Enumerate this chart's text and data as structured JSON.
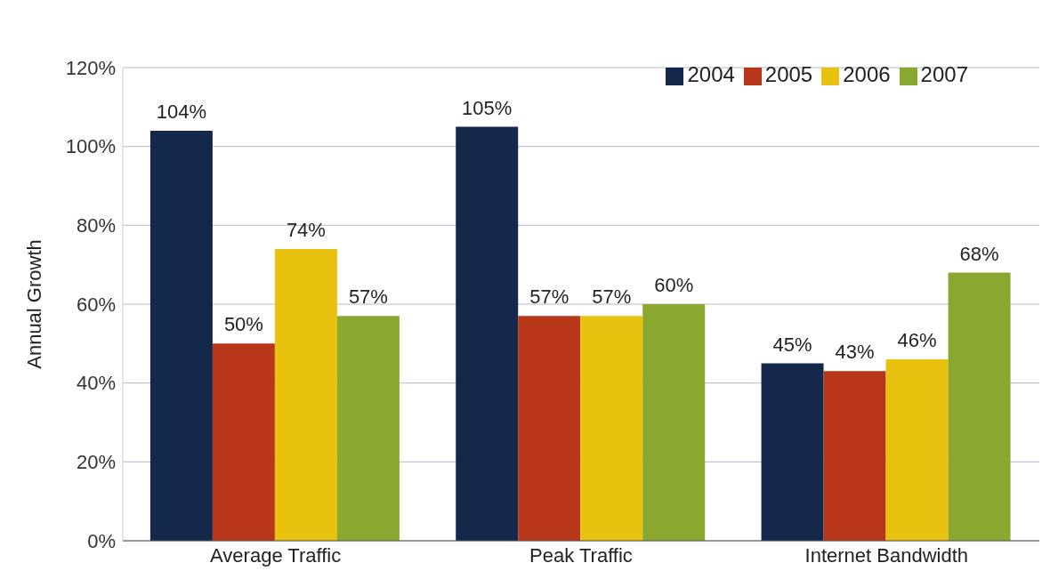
{
  "chart_data": {
    "type": "bar",
    "ylabel": "Annual Growth",
    "categories": [
      "Average Traffic",
      "Peak Traffic",
      "Internet Bandwidth"
    ],
    "series": [
      {
        "name": "2004",
        "color": "#14284b",
        "values": [
          104,
          105,
          45
        ],
        "value_labels": [
          "104%",
          "105%",
          "45%"
        ]
      },
      {
        "name": "2005",
        "color": "#b8361a",
        "values": [
          50,
          57,
          43
        ],
        "value_labels": [
          "50%",
          "57%",
          "43%"
        ]
      },
      {
        "name": "2006",
        "color": "#e8c20f",
        "values": [
          74,
          57,
          46
        ],
        "value_labels": [
          "74%",
          "57%",
          "46%"
        ]
      },
      {
        "name": "2007",
        "color": "#8aa830",
        "values": [
          57,
          60,
          68
        ],
        "value_labels": [
          "57%",
          "60%",
          "68%"
        ]
      }
    ],
    "ylim": [
      0,
      120
    ],
    "yticks": [
      {
        "value": 0,
        "label": "0%"
      },
      {
        "value": 20,
        "label": "20%"
      },
      {
        "value": 40,
        "label": "40%"
      },
      {
        "value": 60,
        "label": "60%"
      },
      {
        "value": 80,
        "label": "80%"
      },
      {
        "value": 100,
        "label": "100%"
      },
      {
        "value": 120,
        "label": "120%"
      }
    ],
    "grid": "y",
    "legend": "top right"
  }
}
